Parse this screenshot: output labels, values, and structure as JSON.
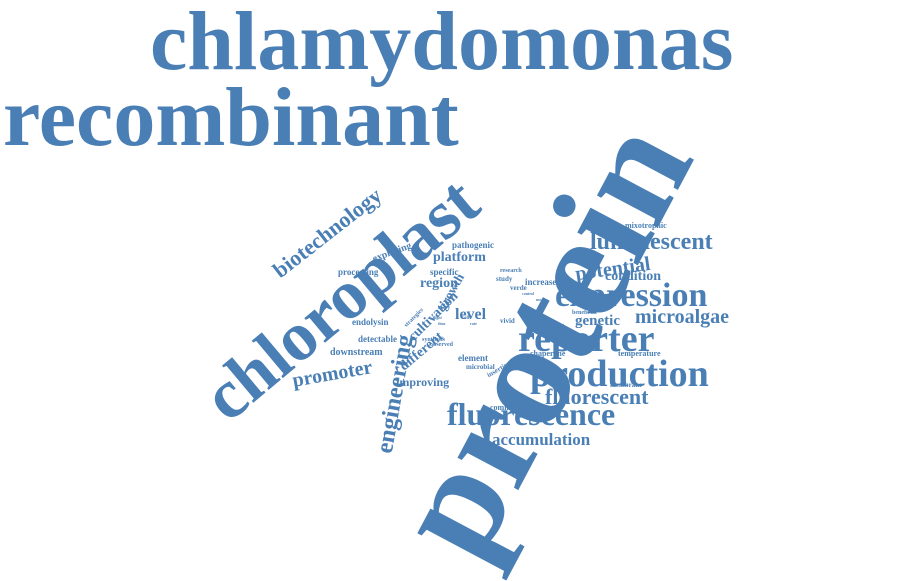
{
  "colors": {
    "word": "#4a7fb5",
    "background": "#ffffff"
  },
  "words": [
    "chlamydomonas",
    "recombinant",
    "protein",
    "chloroplast",
    "expression",
    "reporter",
    "production",
    "fluorescence",
    "fluorescent",
    "luminescent",
    "biotechnology",
    "engineering",
    "promoter",
    "microalgae",
    "accumulation",
    "potential",
    "condition",
    "genetic",
    "platform",
    "level",
    "cultivation",
    "growth",
    "region",
    "different",
    "improving",
    "downstream",
    "detectable",
    "endolysin",
    "processing",
    "exploring",
    "pathogenic",
    "specific",
    "strategies",
    "synthesis",
    "element",
    "microbial",
    "insertion",
    "commercial",
    "chaperone",
    "temperature",
    "membrane",
    "mixotrophic",
    "increase",
    "study",
    "research",
    "verde",
    "vivid",
    "beneficial",
    "attribute",
    "observed",
    "control",
    "mode",
    "light",
    "cell",
    "thus",
    "rate"
  ]
}
